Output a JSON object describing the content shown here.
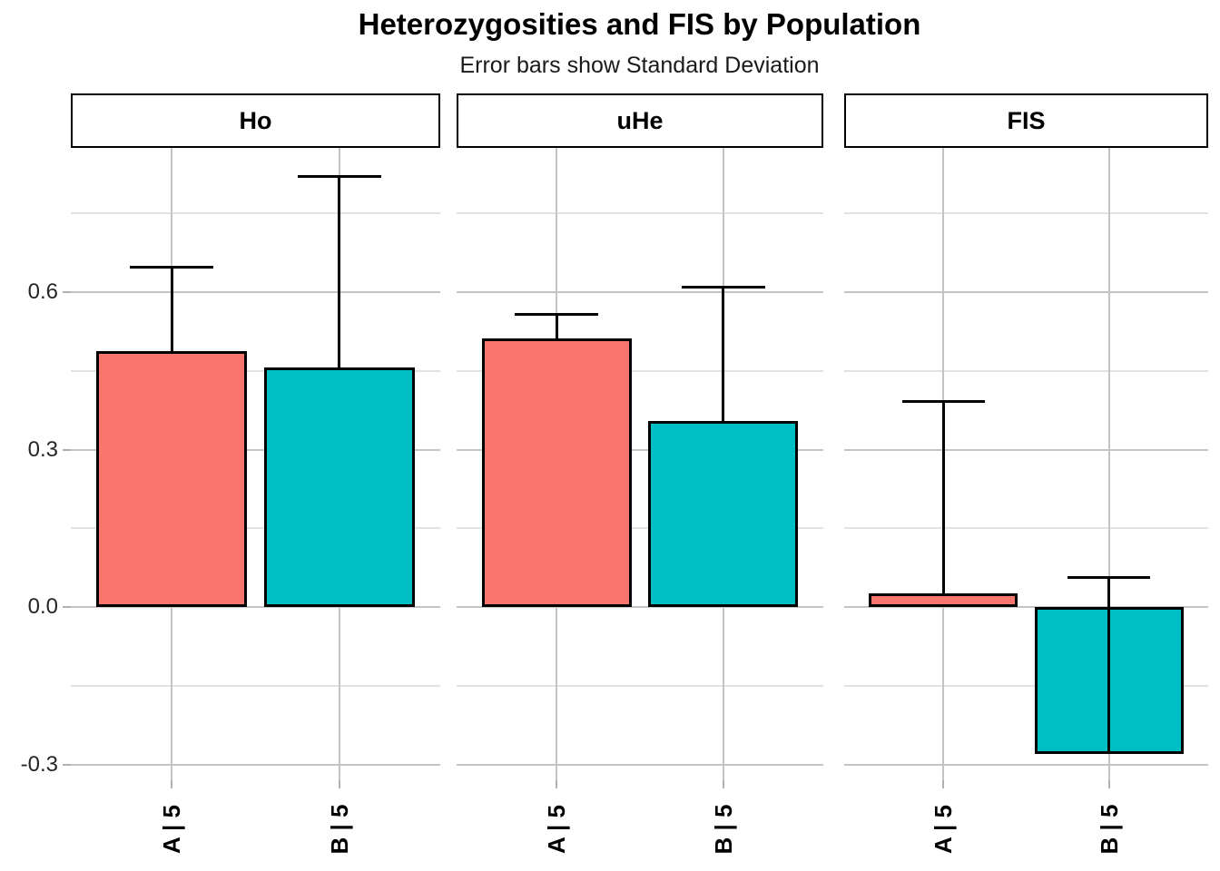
{
  "header": {
    "title": "Heterozygosities and FIS by Population",
    "subtitle": "Error bars show Standard Deviation"
  },
  "chart_data": {
    "type": "bar",
    "title": "Heterozygosities and FIS by Population",
    "subtitle": "Error bars show Standard Deviation",
    "faceted": true,
    "facet_labels": [
      "Ho",
      "uHe",
      "FIS"
    ],
    "categories": [
      "A | 5",
      "B | 5"
    ],
    "error_bar_meaning": "standard deviation, drawn upward from bar value with top cap",
    "facets": [
      {
        "label": "Ho",
        "bars": [
          {
            "category": "A | 5",
            "value": 0.487,
            "sd": 0.16,
            "error_top": 0.647,
            "color": "#F8766D"
          },
          {
            "category": "B | 5",
            "value": 0.457,
            "sd": 0.364,
            "error_top": 0.821,
            "color": "#00BFC4"
          }
        ]
      },
      {
        "label": "uHe",
        "bars": [
          {
            "category": "A | 5",
            "value": 0.512,
            "sd": 0.045,
            "error_top": 0.557,
            "color": "#F8766D"
          },
          {
            "category": "B | 5",
            "value": 0.355,
            "sd": 0.254,
            "error_top": 0.609,
            "color": "#00BFC4"
          }
        ]
      },
      {
        "label": "FIS",
        "bars": [
          {
            "category": "A | 5",
            "value": 0.026,
            "sd": 0.365,
            "error_top": 0.391,
            "color": "#F8766D"
          },
          {
            "category": "B | 5",
            "value": -0.28,
            "sd": 0.337,
            "error_top": 0.057,
            "color": "#00BFC4"
          }
        ]
      }
    ],
    "series_colors": {
      "A | 5": "#F8766D",
      "B | 5": "#00BFC4"
    },
    "xlabel": "",
    "ylabel": "",
    "ylim": [
      -0.33,
      0.875
    ],
    "y_major_ticks": [
      0.6,
      0.3,
      0.0,
      -0.3
    ],
    "y_tick_labels": [
      "0.6",
      "0.3",
      "0.0",
      "-0.3"
    ],
    "y_minor_ticks": [
      0.75,
      0.45,
      0.15,
      -0.15
    ],
    "grid": true,
    "legend": "none",
    "colors": {
      "background": "#FFFFFF",
      "bar_a": "#F8766D",
      "bar_b": "#00BFC4",
      "bar_border": "#000000",
      "error_bar": "#000000",
      "major_grid": "#C4C4C4",
      "minor_grid": "#E2E2E2",
      "tick_mark": "#B0B0B0",
      "strip_bg": "#FFFFFF",
      "strip_border": "#000000"
    }
  }
}
